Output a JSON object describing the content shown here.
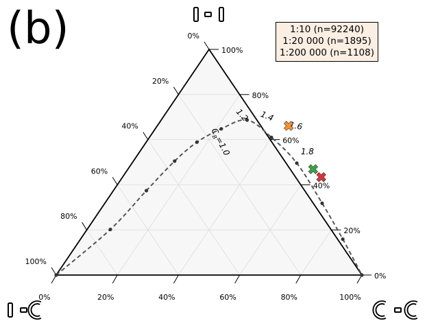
{
  "panel_label": "(b)",
  "legend": {
    "entries": [
      "1:10 (n=92240)",
      "1:20 000 (n=1895)",
      "1:200 000 (n=1108)"
    ],
    "placement": "top-right"
  },
  "colors": {
    "background": "#f7f7f7",
    "grid": "#dcdcdc",
    "curve": "#555555",
    "point": "#333333",
    "marker_orange": "#f39237",
    "marker_green": "#3fa04a",
    "marker_red": "#d9343a",
    "legend_bg": "#fbeee2"
  },
  "chart_data": {
    "type": "ternary",
    "vertex_icons": {
      "top": "node-edge-node-icon",
      "left": "node-edge-loop-icon",
      "right": "loop-edge-loop-icon"
    },
    "axes": {
      "bottom": {
        "ticks": [
          "0%",
          "20%",
          "40%",
          "60%",
          "80%",
          "100%"
        ]
      },
      "left": {
        "ticks": [
          "100%",
          "80%",
          "60%",
          "40%",
          "20%",
          "0%"
        ]
      },
      "right": {
        "ticks": [
          "0%",
          "20%",
          "40%",
          "60%",
          "80%",
          "100%"
        ]
      }
    },
    "grid": true,
    "curve": {
      "style": "dashed",
      "points": [
        {
          "b": 0.0,
          "l": 0.0
        },
        {
          "b": 0.076,
          "l": 0.202
        },
        {
          "b": 0.108,
          "l": 0.374
        },
        {
          "b": 0.135,
          "l": 0.505
        },
        {
          "b": 0.166,
          "l": 0.589
        },
        {
          "b": 0.216,
          "l": 0.648
        },
        {
          "b": 0.281,
          "l": 0.687
        },
        {
          "b": 0.399,
          "l": 0.61
        },
        {
          "b": 0.539,
          "l": 0.496
        },
        {
          "b": 0.711,
          "l": 0.318
        },
        {
          "b": 0.858,
          "l": 0.159
        },
        {
          "b": 1.0,
          "l": 0.0
        }
      ],
      "labels": [
        {
          "text": "C",
          "sub": "B",
          "rest": "=1.0",
          "b": 0.186,
          "l": 0.642
        },
        {
          "text": "1.2",
          "b": 0.251,
          "l": 0.701
        },
        {
          "text": "1.4",
          "b": 0.34,
          "l": 0.693
        },
        {
          "text": "1.6",
          "b": 0.458,
          "l": 0.649
        },
        {
          "text": "1.8",
          "b": 0.554,
          "l": 0.535
        }
      ]
    },
    "markers": [
      {
        "series": "1:10",
        "color": "orange",
        "b": 0.43,
        "l": 0.661
      },
      {
        "series": "1:20 000",
        "color": "green",
        "b": 0.606,
        "l": 0.469
      },
      {
        "series": "1:200 000",
        "color": "red",
        "b": 0.65,
        "l": 0.434
      }
    ]
  }
}
